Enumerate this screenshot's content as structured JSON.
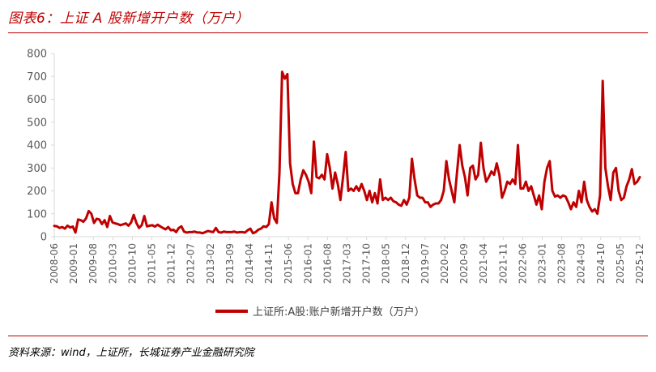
{
  "figure_title": "图表6：上证 A 股新增开户数（万户）",
  "source": "资料来源：wind，上证所，长城证券产业金融研究院",
  "colors": {
    "line": "#c00000",
    "rule": "#c00000",
    "axis": "#d9d9d9",
    "tick_text": "#595959"
  },
  "chart_data": {
    "type": "line",
    "title": "",
    "xlabel": "",
    "ylabel": "",
    "ylim": [
      0,
      800
    ],
    "yticks": [
      0,
      100,
      200,
      300,
      400,
      500,
      600,
      700,
      800
    ],
    "grid": false,
    "legend_position": "bottom-center",
    "x_tick_labels": [
      "2008-06",
      "2009-01",
      "2009-08",
      "2010-03",
      "2010-10",
      "2011-05",
      "2011-12",
      "2012-07",
      "2013-02",
      "2013-09",
      "2014-04",
      "2014-11",
      "2015-06",
      "2016-01",
      "2016-08",
      "2017-03",
      "2017-10",
      "2018-05",
      "2018-12",
      "2019-07",
      "2020-02",
      "2020-09",
      "2021-04",
      "2021-11",
      "2022-06",
      "2023-01",
      "2023-08",
      "2024-03",
      "2024-10",
      "2025-05",
      "2025-12"
    ],
    "x_start": "2008-06",
    "x_end": "2025-12",
    "series": [
      {
        "name": "上证所:A股:账户新增开户数（万户）",
        "color": "#c00000",
        "values": [
          47,
          45,
          38,
          42,
          35,
          48,
          40,
          44,
          18,
          75,
          72,
          65,
          80,
          112,
          100,
          60,
          78,
          75,
          55,
          72,
          42,
          90,
          62,
          58,
          55,
          50,
          54,
          58,
          48,
          62,
          95,
          60,
          38,
          50,
          90,
          45,
          48,
          50,
          44,
          52,
          45,
          38,
          32,
          42,
          28,
          30,
          20,
          38,
          45,
          22,
          18,
          20,
          20,
          22,
          18,
          18,
          15,
          20,
          25,
          22,
          20,
          38,
          20,
          18,
          22,
          20,
          20,
          20,
          22,
          18,
          20,
          20,
          18,
          28,
          35,
          15,
          20,
          30,
          35,
          45,
          42,
          55,
          150,
          80,
          60,
          280,
          720,
          690,
          710,
          320,
          230,
          190,
          190,
          250,
          290,
          270,
          240,
          190,
          415,
          260,
          255,
          270,
          250,
          360,
          300,
          210,
          280,
          230,
          160,
          260,
          370,
          200,
          210,
          200,
          220,
          200,
          230,
          200,
          160,
          200,
          150,
          190,
          145,
          250,
          160,
          170,
          160,
          170,
          155,
          150,
          140,
          135,
          160,
          140,
          170,
          340,
          250,
          180,
          170,
          170,
          150,
          150,
          130,
          140,
          145,
          145,
          160,
          200,
          330,
          250,
          200,
          150,
          280,
          400,
          310,
          260,
          180,
          300,
          310,
          250,
          270,
          410,
          300,
          240,
          260,
          285,
          270,
          320,
          270,
          170,
          200,
          240,
          230,
          250,
          230,
          400,
          210,
          210,
          240,
          200,
          220,
          180,
          140,
          180,
          120,
          240,
          300,
          330,
          200,
          175,
          180,
          170,
          180,
          175,
          150,
          120,
          150,
          130,
          200,
          150,
          240,
          160,
          130,
          110,
          120,
          100,
          180,
          680,
          300,
          220,
          160,
          280,
          300,
          200,
          160,
          170,
          220,
          250,
          295,
          230,
          240,
          260
        ]
      }
    ]
  }
}
